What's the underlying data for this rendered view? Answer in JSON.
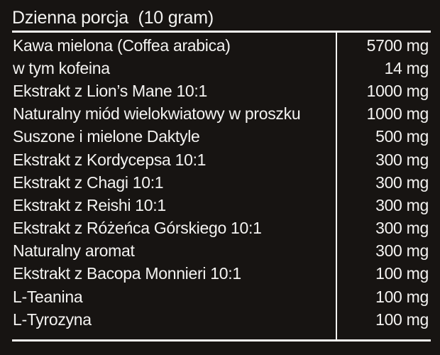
{
  "title": "Dzienna porcja  (10 gram)",
  "colors": {
    "background": "#171412",
    "text": "#f4f3f1",
    "rule_lines": "#f4f3f1"
  },
  "unit": "mg",
  "table": {
    "rows": [
      {
        "name": "Kawa mielona (Coffea arabica)",
        "amount": "5700 mg"
      },
      {
        "name": "w tym kofeina",
        "amount": "14 mg"
      },
      {
        "name": "Ekstrakt z Lion’s Mane 10:1",
        "amount": "1000 mg"
      },
      {
        "name": "Naturalny miód wielokwiatowy w proszku",
        "amount": "1000 mg"
      },
      {
        "name": "Suszone i mielone Daktyle",
        "amount": "500 mg"
      },
      {
        "name": "Ekstrakt z Kordycepsa 10:1",
        "amount": "300 mg"
      },
      {
        "name": "Ekstrakt z Chagi 10:1",
        "amount": "300 mg"
      },
      {
        "name": "Ekstrakt z Reishi 10:1",
        "amount": "300 mg"
      },
      {
        "name": "Ekstrakt z Różeńca Górskiego 10:1",
        "amount": "300 mg"
      },
      {
        "name": "Naturalny aromat",
        "amount": "300 mg"
      },
      {
        "name": "Ekstrakt z Bacopa Monnieri 10:1",
        "amount": "100 mg"
      },
      {
        "name": "L-Teanina",
        "amount": "100 mg"
      },
      {
        "name": "L-Tyrozyna",
        "amount": "100 mg"
      }
    ]
  }
}
